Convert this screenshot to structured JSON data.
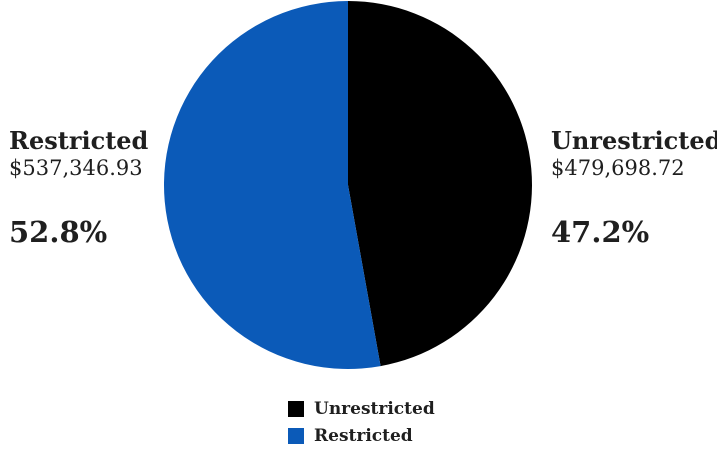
{
  "chart_data": {
    "type": "pie",
    "title": "",
    "slices": [
      {
        "name": "Unrestricted",
        "amount_label": "$479,698.72",
        "value": 479698.72,
        "percent": 47.2,
        "percent_label": "47.2%",
        "color": "#000000"
      },
      {
        "name": "Restricted",
        "amount_label": "$537,346.93",
        "value": 537346.93,
        "percent": 52.8,
        "percent_label": "52.8%",
        "color": "#0b5ab8"
      }
    ],
    "start_angle": "12 o'clock",
    "direction": "clockwise",
    "legend_position": "bottom"
  }
}
